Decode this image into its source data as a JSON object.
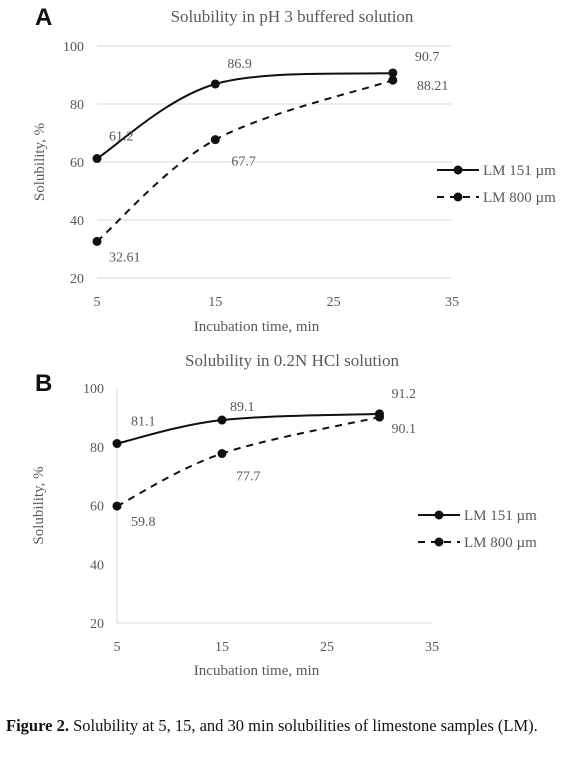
{
  "chart_data": [
    {
      "type": "line",
      "panel": "A",
      "title": "Solubility in pH 3 buffered solution",
      "xlabel": "Incubation time, min",
      "ylabel": "Solubility, %",
      "xlim": [
        5,
        35
      ],
      "ylim": [
        20,
        100
      ],
      "xticks": [
        5,
        15,
        25,
        35
      ],
      "yticks": [
        20,
        40,
        60,
        80,
        100
      ],
      "grid": "horizontal",
      "legend": "right",
      "series": [
        {
          "name": "LM 151 µm",
          "style": "solid",
          "x": [
            5,
            15,
            30
          ],
          "y": [
            61.2,
            86.9,
            90.7
          ],
          "labels": [
            "61.2",
            "86.9",
            "90.7"
          ]
        },
        {
          "name": "LM 800 µm",
          "style": "dashed",
          "x": [
            5,
            15,
            30
          ],
          "y": [
            32.61,
            67.7,
            88.21
          ],
          "labels": [
            "32.61",
            "67.7",
            "88.21"
          ]
        }
      ]
    },
    {
      "type": "line",
      "panel": "B",
      "title": "Solubility in 0.2N HCl solution",
      "xlabel": "Incubation time, min",
      "ylabel": "Solubility, %",
      "xlim": [
        5,
        35
      ],
      "ylim": [
        20,
        100
      ],
      "xticks": [
        5,
        15,
        25,
        35
      ],
      "yticks": [
        20,
        40,
        60,
        80,
        100
      ],
      "grid": "none",
      "legend": "right",
      "series": [
        {
          "name": "LM 151 µm",
          "style": "solid",
          "x": [
            5,
            15,
            30
          ],
          "y": [
            81.1,
            89.1,
            91.2
          ],
          "labels": [
            "81.1",
            "89.1",
            "91.2"
          ]
        },
        {
          "name": "LM 800 µm",
          "style": "dashed",
          "x": [
            5,
            15,
            30
          ],
          "y": [
            59.8,
            77.7,
            90.1
          ],
          "labels": [
            "59.8",
            "77.7",
            "90.1"
          ]
        }
      ]
    }
  ],
  "caption": {
    "label": "Figure 2.",
    "text": "Solubility at 5, 15, and 30 min solubilities of limestone samples (LM)."
  },
  "colors": {
    "line": "#111111",
    "grid": "#d9d9d9",
    "axis_text": "#595959"
  }
}
